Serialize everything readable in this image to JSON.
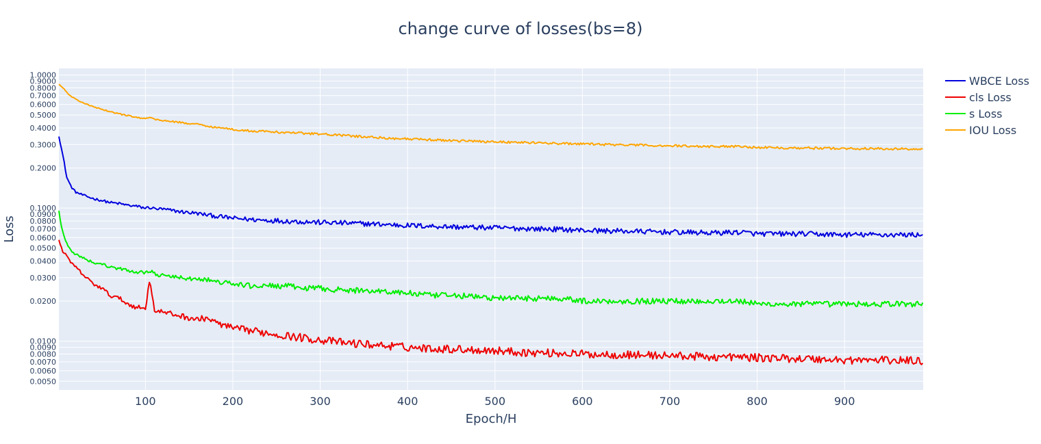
{
  "chart_data": {
    "type": "line",
    "title": "change curve of losses(bs=8)",
    "xlabel": "Epoch/H",
    "ylabel": "Loss",
    "xlim": [
      1,
      990
    ],
    "ylim": [
      0.0043,
      1.12
    ],
    "y_scale": "log",
    "grid": true,
    "legend_position": "top-right outside",
    "x_ticks": [
      100,
      200,
      300,
      400,
      500,
      600,
      700,
      800,
      900
    ],
    "y_ticks": [
      0.005,
      0.006,
      0.007,
      0.008,
      0.009,
      0.01,
      0.02,
      0.03,
      0.04,
      0.05,
      0.06,
      0.07,
      0.08,
      0.09,
      0.1,
      0.2,
      0.3,
      0.4,
      0.5,
      0.6,
      0.7,
      0.8,
      0.9,
      1.0
    ],
    "y_tick_labels": [
      "0.0050",
      "0.0060",
      "0.0070",
      "0.0080",
      "0.0090",
      "0.0100",
      "0.0200",
      "0.0300",
      "0.0400",
      "0.0500",
      "0.0600",
      "0.0700",
      "0.0800",
      "0.0900",
      "0.1000",
      "0.2000",
      "0.3000",
      "0.4000",
      "0.5000",
      "0.6000",
      "0.7000",
      "0.8000",
      "0.9000",
      "1.0000"
    ],
    "x": [
      1,
      3,
      6,
      10,
      15,
      20,
      30,
      40,
      50,
      60,
      70,
      80,
      90,
      100,
      105,
      110,
      120,
      140,
      160,
      170,
      180,
      200,
      220,
      240,
      260,
      280,
      300,
      330,
      360,
      400,
      430,
      460,
      500,
      540,
      580,
      600,
      650,
      700,
      750,
      780,
      800,
      850,
      900,
      950,
      990
    ],
    "series": [
      {
        "name": "WBCE Loss",
        "color": "#0000dd",
        "values": [
          0.35,
          0.3,
          0.24,
          0.17,
          0.145,
          0.132,
          0.124,
          0.118,
          0.114,
          0.11,
          0.108,
          0.105,
          0.103,
          0.1,
          0.101,
          0.099,
          0.098,
          0.094,
          0.091,
          0.089,
          0.087,
          0.084,
          0.082,
          0.081,
          0.08,
          0.079,
          0.078,
          0.077,
          0.076,
          0.074,
          0.073,
          0.072,
          0.071,
          0.07,
          0.069,
          0.068,
          0.067,
          0.066,
          0.065,
          0.066,
          0.064,
          0.064,
          0.063,
          0.063,
          0.063
        ]
      },
      {
        "name": "cls Loss",
        "color": "#ee0000",
        "values": [
          0.058,
          0.052,
          0.047,
          0.043,
          0.039,
          0.036,
          0.031,
          0.027,
          0.025,
          0.022,
          0.021,
          0.019,
          0.018,
          0.0175,
          0.03,
          0.0172,
          0.0165,
          0.0155,
          0.0145,
          0.015,
          0.0138,
          0.0125,
          0.012,
          0.0115,
          0.011,
          0.0106,
          0.0102,
          0.0097,
          0.0094,
          0.009,
          0.0088,
          0.0087,
          0.0085,
          0.0082,
          0.0081,
          0.008,
          0.0079,
          0.0078,
          0.0076,
          0.0076,
          0.0075,
          0.0074,
          0.0072,
          0.0072,
          0.0071
        ]
      },
      {
        "name": "s Loss",
        "color": "#00ee00",
        "values": [
          0.095,
          0.078,
          0.065,
          0.054,
          0.048,
          0.045,
          0.042,
          0.039,
          0.038,
          0.036,
          0.035,
          0.034,
          0.033,
          0.033,
          0.034,
          0.032,
          0.031,
          0.03,
          0.029,
          0.029,
          0.028,
          0.027,
          0.026,
          0.026,
          0.026,
          0.025,
          0.025,
          0.024,
          0.024,
          0.023,
          0.022,
          0.022,
          0.021,
          0.021,
          0.021,
          0.02,
          0.02,
          0.02,
          0.02,
          0.02,
          0.019,
          0.019,
          0.019,
          0.019,
          0.019
        ]
      },
      {
        "name": "IOU Loss",
        "color": "#ffa500",
        "values": [
          0.85,
          0.83,
          0.8,
          0.74,
          0.69,
          0.66,
          0.61,
          0.58,
          0.55,
          0.53,
          0.51,
          0.495,
          0.48,
          0.47,
          0.48,
          0.465,
          0.455,
          0.44,
          0.425,
          0.415,
          0.405,
          0.39,
          0.38,
          0.375,
          0.37,
          0.365,
          0.36,
          0.35,
          0.34,
          0.33,
          0.325,
          0.32,
          0.315,
          0.31,
          0.305,
          0.303,
          0.298,
          0.294,
          0.29,
          0.292,
          0.285,
          0.283,
          0.28,
          0.279,
          0.277
        ]
      }
    ]
  }
}
